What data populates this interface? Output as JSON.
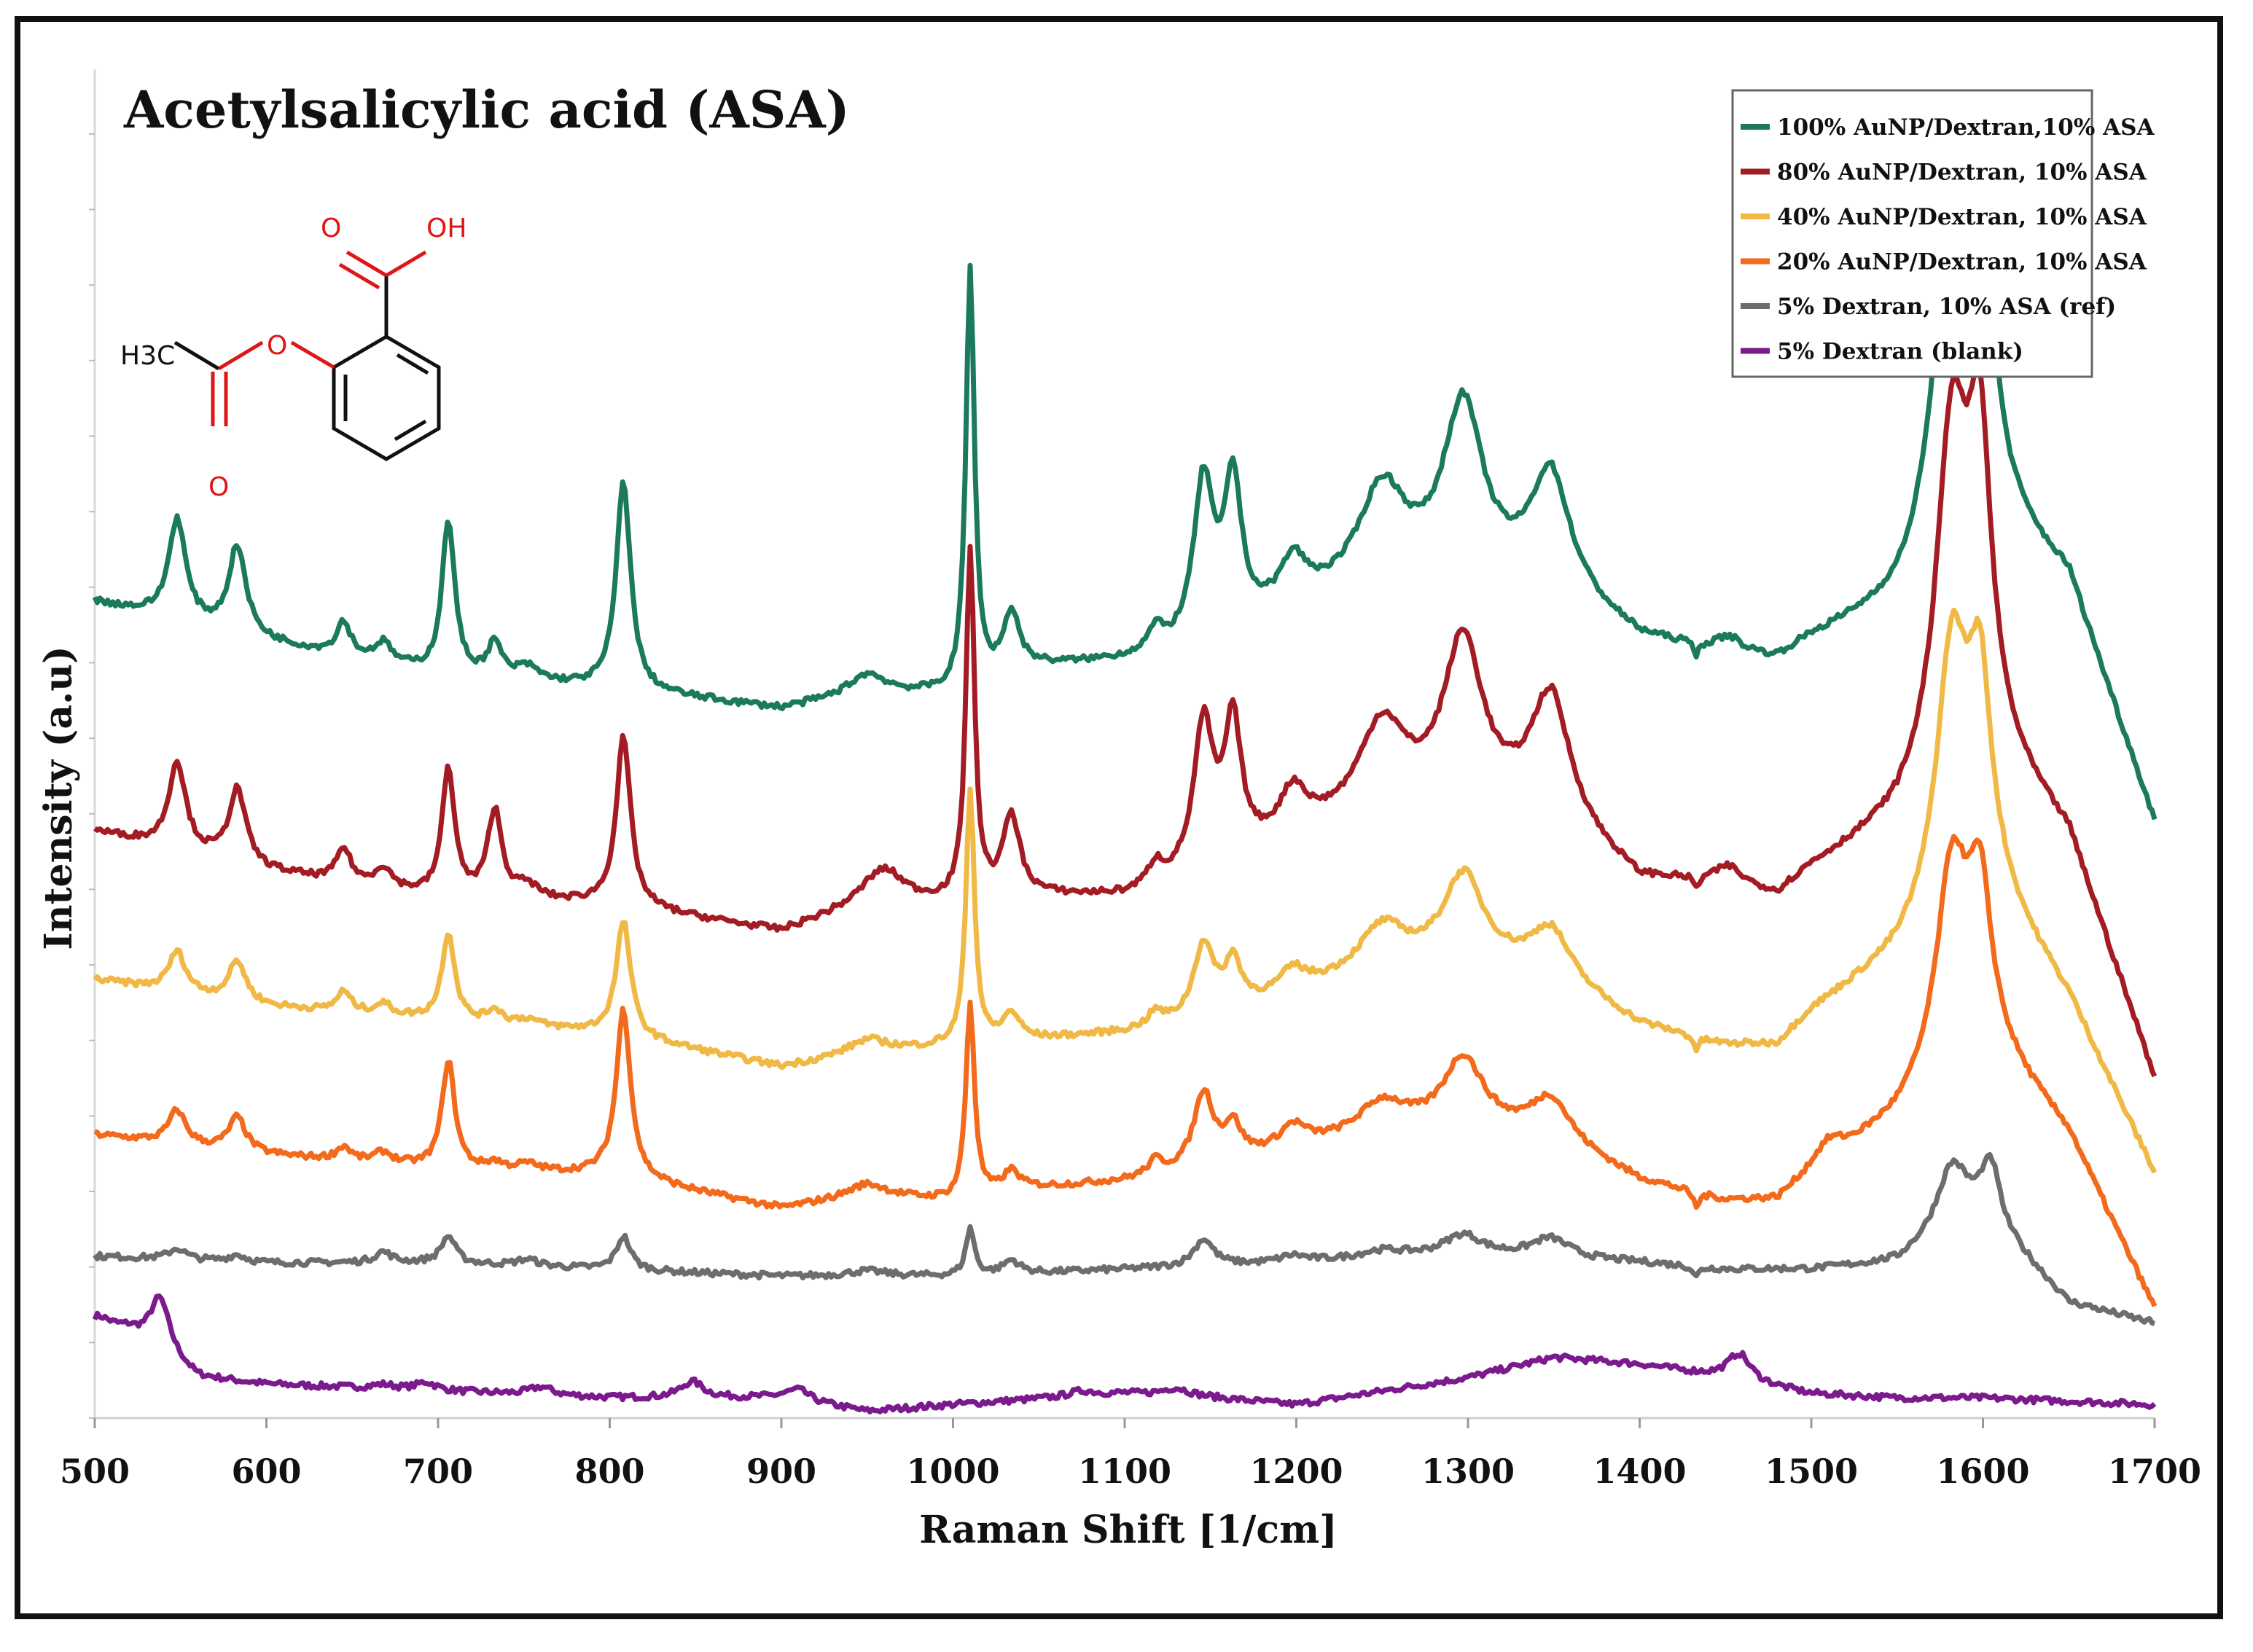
{
  "chart_data": {
    "type": "line",
    "title": "Acetylsalicylic acid (ASA)",
    "xlabel": "Raman Shift [1/cm]",
    "ylabel": "Intensity (a.u)",
    "xlim": [
      500,
      1700
    ],
    "ylim": [
      0,
      100
    ],
    "y_ticks_labeled": false,
    "grid": false,
    "legend_position": "top-right",
    "x_ticks": [
      500,
      600,
      700,
      800,
      900,
      1000,
      1100,
      1200,
      1300,
      1400,
      1500,
      1600,
      1700
    ],
    "inset": {
      "description": "structure of acetylsalicylic acid",
      "labels": {
        "carbonyl_o": "O",
        "hydroxyl": "OH",
        "methyl": "H3C",
        "ester_o": "O",
        "acyl_o": "O"
      }
    },
    "series": [
      {
        "name": "100% AuNP/Dextran,10% ASA",
        "color": "#1b7a5e",
        "baseline": [
          [
            500,
            60.5
          ],
          [
            600,
            57.5
          ],
          [
            700,
            55
          ],
          [
            800,
            54
          ],
          [
            900,
            52.5
          ],
          [
            950,
            53.5
          ],
          [
            1000,
            53.5
          ],
          [
            1050,
            55.5
          ],
          [
            1100,
            56
          ],
          [
            1150,
            57
          ],
          [
            1200,
            60
          ],
          [
            1300,
            62
          ],
          [
            1350,
            61
          ],
          [
            1400,
            57.5
          ],
          [
            1450,
            56.5
          ],
          [
            1480,
            56
          ],
          [
            1500,
            57.5
          ],
          [
            1550,
            60
          ],
          [
            1600,
            67
          ],
          [
            1650,
            62
          ],
          [
            1700,
            44
          ]
        ],
        "peaks": [
          [
            548,
            7.5,
            6
          ],
          [
            583,
            6.5,
            6
          ],
          [
            645,
            2.5,
            5
          ],
          [
            668,
            1.5,
            6
          ],
          [
            706,
            11.5,
            4.5
          ],
          [
            733,
            2.5,
            5
          ],
          [
            752,
            1,
            8
          ],
          [
            808,
            15.5,
            5
          ],
          [
            950,
            1.5,
            14
          ],
          [
            1010,
            31,
            3
          ],
          [
            1034,
            4.5,
            6
          ],
          [
            1118,
            1.5,
            5
          ],
          [
            1146,
            12,
            7
          ],
          [
            1163,
            11,
            6
          ],
          [
            1198,
            3,
            9
          ],
          [
            1250,
            7.5,
            17
          ],
          [
            1297,
            12.5,
            14
          ],
          [
            1348,
            8.5,
            14
          ],
          [
            1433,
            -1,
            2
          ],
          [
            1452,
            1,
            8
          ],
          [
            1582,
            27,
            11
          ],
          [
            1598,
            22,
            8
          ]
        ]
      },
      {
        "name": "80% AuNP/Dextran, 10% ASA",
        "color": "#a31b23",
        "baseline": [
          [
            500,
            43.5
          ],
          [
            600,
            40.5
          ],
          [
            700,
            38.5
          ],
          [
            800,
            38
          ],
          [
            900,
            36
          ],
          [
            950,
            38
          ],
          [
            1000,
            38
          ],
          [
            1050,
            38.5
          ],
          [
            1100,
            38.5
          ],
          [
            1150,
            40
          ],
          [
            1200,
            43
          ],
          [
            1300,
            45
          ],
          [
            1350,
            44
          ],
          [
            1400,
            39.5
          ],
          [
            1450,
            39.5
          ],
          [
            1480,
            38.5
          ],
          [
            1500,
            40.5
          ],
          [
            1550,
            44
          ],
          [
            1600,
            50
          ],
          [
            1650,
            43
          ],
          [
            1700,
            25
          ]
        ],
        "peaks": [
          [
            548,
            6.5,
            6
          ],
          [
            583,
            5.5,
            6
          ],
          [
            645,
            2.5,
            5
          ],
          [
            668,
            1.5,
            6
          ],
          [
            706,
            9.5,
            4.5
          ],
          [
            733,
            6.5,
            5
          ],
          [
            752,
            1,
            8
          ],
          [
            808,
            12.5,
            5
          ],
          [
            960,
            2.5,
            14
          ],
          [
            1010,
            26,
            3
          ],
          [
            1034,
            6,
            6
          ],
          [
            1118,
            1.5,
            5
          ],
          [
            1146,
            11,
            7
          ],
          [
            1163,
            10,
            6
          ],
          [
            1198,
            3,
            9
          ],
          [
            1250,
            7,
            17
          ],
          [
            1297,
            12,
            14
          ],
          [
            1348,
            9,
            14
          ],
          [
            1433,
            -1,
            2
          ],
          [
            1452,
            1,
            8
          ],
          [
            1582,
            25,
            11
          ],
          [
            1598,
            20,
            8
          ]
        ]
      },
      {
        "name": "40% AuNP/Dextran, 10% ASA",
        "color": "#f0b946",
        "baseline": [
          [
            500,
            32.5
          ],
          [
            600,
            30.5
          ],
          [
            700,
            29.5
          ],
          [
            800,
            28.5
          ],
          [
            900,
            26
          ],
          [
            950,
            27
          ],
          [
            1000,
            27.5
          ],
          [
            1050,
            28
          ],
          [
            1100,
            28.5
          ],
          [
            1150,
            29.5
          ],
          [
            1200,
            31.5
          ],
          [
            1300,
            34
          ],
          [
            1350,
            32.5
          ],
          [
            1400,
            29
          ],
          [
            1450,
            27.5
          ],
          [
            1480,
            27.5
          ],
          [
            1500,
            30
          ],
          [
            1550,
            34
          ],
          [
            1600,
            40
          ],
          [
            1650,
            31
          ],
          [
            1700,
            18
          ]
        ],
        "peaks": [
          [
            548,
            3,
            6
          ],
          [
            583,
            3,
            6
          ],
          [
            645,
            1.5,
            5
          ],
          [
            668,
            0.8,
            6
          ],
          [
            706,
            6.5,
            4.5
          ],
          [
            733,
            1,
            5
          ],
          [
            752,
            0.5,
            8
          ],
          [
            808,
            8.5,
            5
          ],
          [
            950,
            1,
            14
          ],
          [
            1010,
            19,
            3
          ],
          [
            1034,
            2,
            6
          ],
          [
            1118,
            1,
            5
          ],
          [
            1146,
            5.5,
            7
          ],
          [
            1163,
            3.5,
            6
          ],
          [
            1198,
            1.5,
            9
          ],
          [
            1250,
            3.5,
            17
          ],
          [
            1297,
            6,
            14
          ],
          [
            1348,
            3.5,
            14
          ],
          [
            1433,
            -1,
            2
          ],
          [
            1582,
            19,
            11
          ],
          [
            1598,
            13,
            8
          ]
        ]
      },
      {
        "name": "20% AuNP/Dextran, 10% ASA",
        "color": "#f36a1c",
        "baseline": [
          [
            500,
            21
          ],
          [
            600,
            19.5
          ],
          [
            700,
            18.5
          ],
          [
            800,
            18
          ],
          [
            900,
            15.5
          ],
          [
            950,
            16.5
          ],
          [
            1000,
            16
          ],
          [
            1050,
            17
          ],
          [
            1100,
            17.5
          ],
          [
            1150,
            18.5
          ],
          [
            1200,
            20
          ],
          [
            1300,
            21.5
          ],
          [
            1350,
            20.5
          ],
          [
            1400,
            17.5
          ],
          [
            1450,
            16
          ],
          [
            1480,
            16
          ],
          [
            1500,
            18
          ],
          [
            1550,
            22
          ],
          [
            1600,
            28
          ],
          [
            1650,
            21
          ],
          [
            1700,
            8
          ]
        ],
        "peaks": [
          [
            548,
            2.5,
            6
          ],
          [
            583,
            2.5,
            6
          ],
          [
            645,
            1,
            5
          ],
          [
            668,
            0.8,
            6
          ],
          [
            706,
            8,
            4.5
          ],
          [
            733,
            0.5,
            5
          ],
          [
            752,
            0.5,
            8
          ],
          [
            808,
            12.5,
            5
          ],
          [
            950,
            0.8,
            14
          ],
          [
            1010,
            14.5,
            3
          ],
          [
            1034,
            1.5,
            6
          ],
          [
            1118,
            1,
            5
          ],
          [
            1146,
            5.5,
            7
          ],
          [
            1163,
            2.5,
            6
          ],
          [
            1198,
            1.5,
            9
          ],
          [
            1250,
            2.5,
            17
          ],
          [
            1297,
            5,
            14
          ],
          [
            1348,
            3,
            14
          ],
          [
            1433,
            -1.2,
            2
          ],
          [
            1510,
            1.5,
            10
          ],
          [
            1582,
            15,
            11
          ],
          [
            1598,
            10,
            8
          ]
        ]
      },
      {
        "name": "5% Dextran, 10% ASA (ref)",
        "color": "#6d6d6d",
        "baseline": [
          [
            500,
            12
          ],
          [
            600,
            11.5
          ],
          [
            700,
            11.5
          ],
          [
            800,
            11
          ],
          [
            900,
            10.5
          ],
          [
            1000,
            10.5
          ],
          [
            1100,
            11
          ],
          [
            1200,
            11.5
          ],
          [
            1300,
            12
          ],
          [
            1400,
            11.5
          ],
          [
            1450,
            11
          ],
          [
            1500,
            11
          ],
          [
            1550,
            11.5
          ],
          [
            1600,
            15
          ],
          [
            1650,
            8.5
          ],
          [
            1700,
            7
          ]
        ],
        "peaks": [
          [
            548,
            0.8,
            6
          ],
          [
            583,
            0.5,
            6
          ],
          [
            668,
            0.8,
            6
          ],
          [
            706,
            2,
            5
          ],
          [
            752,
            0.5,
            8
          ],
          [
            808,
            2.5,
            5
          ],
          [
            950,
            0.4,
            14
          ],
          [
            1010,
            3.5,
            3
          ],
          [
            1034,
            1,
            6
          ],
          [
            1146,
            2,
            7
          ],
          [
            1198,
            0.5,
            9
          ],
          [
            1250,
            0.6,
            17
          ],
          [
            1297,
            1.5,
            14
          ],
          [
            1348,
            1.5,
            14
          ],
          [
            1433,
            -0.8,
            2
          ],
          [
            1582,
            5,
            11
          ],
          [
            1605,
            4,
            6
          ]
        ]
      },
      {
        "name": "5% Dextran (blank)",
        "color": "#7b1a8c",
        "baseline": [
          [
            500,
            7
          ],
          [
            520,
            6.5
          ],
          [
            560,
            3
          ],
          [
            600,
            2.5
          ],
          [
            700,
            2
          ],
          [
            800,
            1.5
          ],
          [
            900,
            1.5
          ],
          [
            950,
            0.5
          ],
          [
            1000,
            1
          ],
          [
            1100,
            1.8
          ],
          [
            1150,
            1.5
          ],
          [
            1200,
            1
          ],
          [
            1300,
            3
          ],
          [
            1350,
            4.5
          ],
          [
            1400,
            4
          ],
          [
            1450,
            3
          ],
          [
            1500,
            1.8
          ],
          [
            1550,
            1.5
          ],
          [
            1600,
            1.5
          ],
          [
            1700,
            1
          ]
        ],
        "peaks": [
          [
            503,
            0.5,
            6
          ],
          [
            538,
            4,
            7
          ],
          [
            668,
            0.3,
            8
          ],
          [
            693,
            0.6,
            7
          ],
          [
            760,
            0.6,
            8
          ],
          [
            848,
            1.2,
            8
          ],
          [
            910,
            0.8,
            8
          ],
          [
            1075,
            0.4,
            10
          ],
          [
            1130,
            0.6,
            10
          ],
          [
            1458,
            2,
            8
          ]
        ]
      }
    ]
  }
}
